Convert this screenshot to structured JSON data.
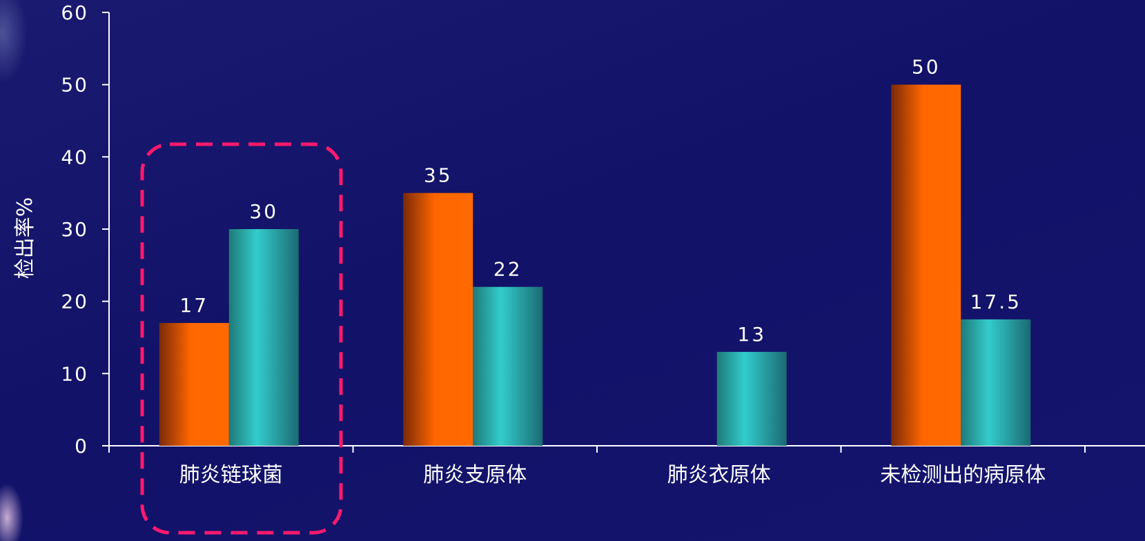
{
  "chart_data": {
    "type": "bar",
    "ylabel": "检出率%",
    "xlabel": "",
    "ylim": [
      0,
      60
    ],
    "yticks": [
      0,
      10,
      20,
      30,
      40,
      50,
      60
    ],
    "categories": [
      "肺炎链球菌",
      "肺炎支原体",
      "肺炎衣原体",
      "未检测出的病原体"
    ],
    "series": [
      {
        "color": "#ff6600",
        "values": [
          17,
          35,
          null,
          50
        ],
        "labels": [
          "17",
          "35",
          "",
          "50"
        ]
      },
      {
        "color": "#2ec8c8",
        "values": [
          30,
          22,
          13,
          17.5
        ],
        "labels": [
          "30",
          "22",
          "13",
          "17.5"
        ]
      }
    ],
    "highlight": {
      "category_index": 0,
      "color": "#ff1a6e",
      "style": "dashed"
    },
    "grid": false
  }
}
